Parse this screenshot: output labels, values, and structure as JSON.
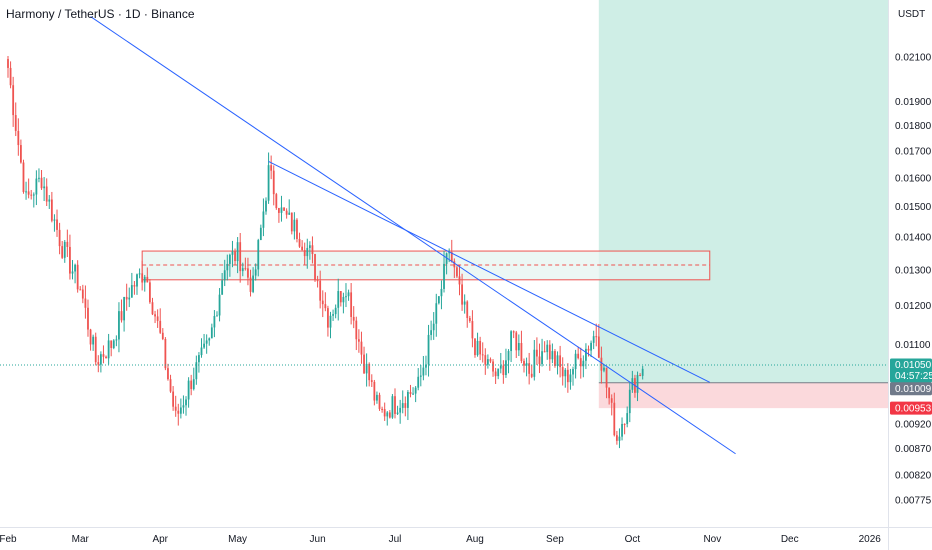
{
  "header": {
    "title": "Harmony / TetherUS · 1D · Binance",
    "currency": "USDT"
  },
  "colors": {
    "up": "#26a69a",
    "down": "#ef5350",
    "trendline": "#2962ff",
    "target_zone": "#cfeee6",
    "stop_zone": "#fbd9dc",
    "rect_border": "#ef5350",
    "rect_fill": "#e4f3ef",
    "last_price_tag": "#26a69a",
    "stop_tag": "#f23645",
    "entry_tag": "#707a8a"
  },
  "chart_data": {
    "type": "candlestick",
    "title": "Harmony / TetherUS · 1D · Binance",
    "scale": "log",
    "y_ticks": [
      0.021,
      0.019,
      0.018,
      0.017,
      0.016,
      0.015,
      0.014,
      0.013,
      0.012,
      0.011,
      0.0092,
      0.0087,
      0.0082,
      0.00775
    ],
    "y_tick_labels": [
      "0.02100",
      "0.01900",
      "0.01800",
      "0.01700",
      "0.01600",
      "0.01500",
      "0.01400",
      "0.01300",
      "0.01200",
      "0.01100",
      "0.00920",
      "0.00870",
      "0.00820",
      "0.00775"
    ],
    "x_tick_labels": [
      "Feb",
      "Mar",
      "Apr",
      "May",
      "Jun",
      "Jul",
      "Aug",
      "Sep",
      "Oct",
      "Nov",
      "Dec",
      "2026"
    ],
    "x_ticks_dates": [
      "2025-02-01",
      "2025-03-01",
      "2025-04-01",
      "2025-05-01",
      "2025-06-01",
      "2025-07-01",
      "2025-08-01",
      "2025-09-01",
      "2025-10-01",
      "2025-11-01",
      "2025-12-01",
      "2026-01-01"
    ],
    "price_labels": {
      "last_price": "0.01050",
      "countdown": "04:57:25",
      "entry": "0.01009",
      "stop": "0.00953"
    },
    "last_price": 0.0105,
    "entry": 0.01009,
    "stop": 0.00953,
    "resistance_zone": {
      "start": "2025-03-25",
      "end": "2025-10-31",
      "high": 0.01357,
      "low": 0.01272,
      "mid": 0.01315
    },
    "long_position": {
      "start": "2025-09-18",
      "end": "2026-01-31",
      "target": 0.0225,
      "entry": 0.01009,
      "stop": 0.00953
    },
    "trendlines": [
      {
        "from": {
          "date": "2025-03-05",
          "price": 0.023
        },
        "to": {
          "date": "2025-11-10",
          "price": 0.0086
        }
      },
      {
        "from": {
          "date": "2025-05-13",
          "price": 0.0166
        },
        "to": {
          "date": "2025-10-31",
          "price": 0.0101
        }
      }
    ],
    "waypoints": [
      [
        "2025-02-01",
        0.0205
      ],
      [
        "2025-02-08",
        0.0152
      ],
      [
        "2025-02-14",
        0.016
      ],
      [
        "2025-02-22",
        0.0137
      ],
      [
        "2025-03-01",
        0.0125
      ],
      [
        "2025-03-07",
        0.0106
      ],
      [
        "2025-03-13",
        0.011
      ],
      [
        "2025-03-20",
        0.0124
      ],
      [
        "2025-03-26",
        0.013
      ],
      [
        "2025-04-01",
        0.0112
      ],
      [
        "2025-04-07",
        0.0093
      ],
      [
        "2025-04-14",
        0.0103
      ],
      [
        "2025-04-20",
        0.011
      ],
      [
        "2025-04-26",
        0.0132
      ],
      [
        "2025-05-01",
        0.0135
      ],
      [
        "2025-05-07",
        0.0125
      ],
      [
        "2025-05-13",
        0.0162
      ],
      [
        "2025-05-18",
        0.0148
      ],
      [
        "2025-05-24",
        0.0142
      ],
      [
        "2025-05-29",
        0.0135
      ],
      [
        "2025-06-05",
        0.0117
      ],
      [
        "2025-06-12",
        0.0126
      ],
      [
        "2025-06-18",
        0.0108
      ],
      [
        "2025-06-25",
        0.0094
      ],
      [
        "2025-07-03",
        0.0097
      ],
      [
        "2025-07-10",
        0.01
      ],
      [
        "2025-07-17",
        0.0118
      ],
      [
        "2025-07-22",
        0.0136
      ],
      [
        "2025-07-27",
        0.012
      ],
      [
        "2025-08-02",
        0.0108
      ],
      [
        "2025-08-10",
        0.0102
      ],
      [
        "2025-08-16",
        0.0112
      ],
      [
        "2025-08-22",
        0.0104
      ],
      [
        "2025-08-28",
        0.011
      ],
      [
        "2025-09-05",
        0.0102
      ],
      [
        "2025-09-12",
        0.0108
      ],
      [
        "2025-09-17",
        0.0113
      ],
      [
        "2025-09-20",
        0.0103
      ],
      [
        "2025-09-25",
        0.0089
      ],
      [
        "2025-10-01",
        0.01
      ],
      [
        "2025-10-05",
        0.0105
      ]
    ]
  }
}
